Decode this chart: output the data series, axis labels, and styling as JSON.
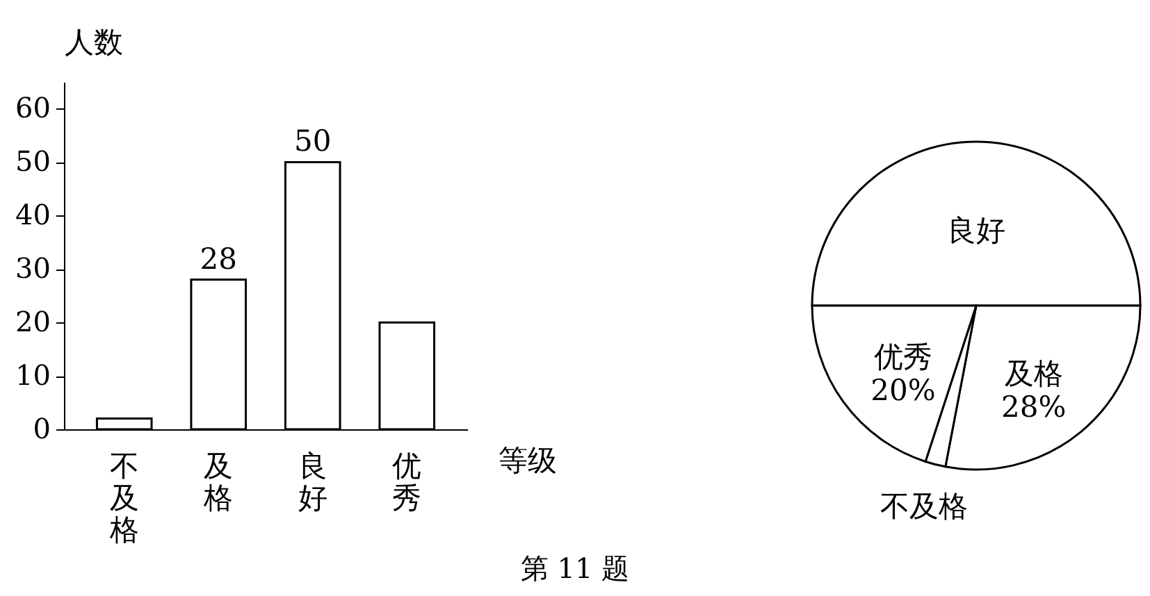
{
  "chart_data": [
    {
      "type": "bar",
      "xlabel": "等级",
      "ylabel": "人数",
      "categories": [
        "不及格",
        "及格",
        "良好",
        "优秀"
      ],
      "values": [
        2,
        28,
        50,
        20
      ],
      "value_labels": [
        null,
        "28",
        "50",
        null
      ],
      "color": "#ffffff",
      "ylim": [
        0,
        65
      ],
      "yticks": [
        0,
        10,
        20,
        30,
        40,
        50,
        60
      ],
      "grid": false,
      "annotations": [
        "第 11 题"
      ]
    },
    {
      "type": "pie",
      "categories": [
        "良好",
        "及格",
        "不及格",
        "优秀"
      ],
      "values": [
        50,
        28,
        2,
        20
      ],
      "value_labels": [
        null,
        "28%",
        null,
        "20%"
      ],
      "colors": [
        "#ffffff",
        "#ffffff",
        "#ffffff",
        "#ffffff"
      ],
      "legend": false
    }
  ]
}
